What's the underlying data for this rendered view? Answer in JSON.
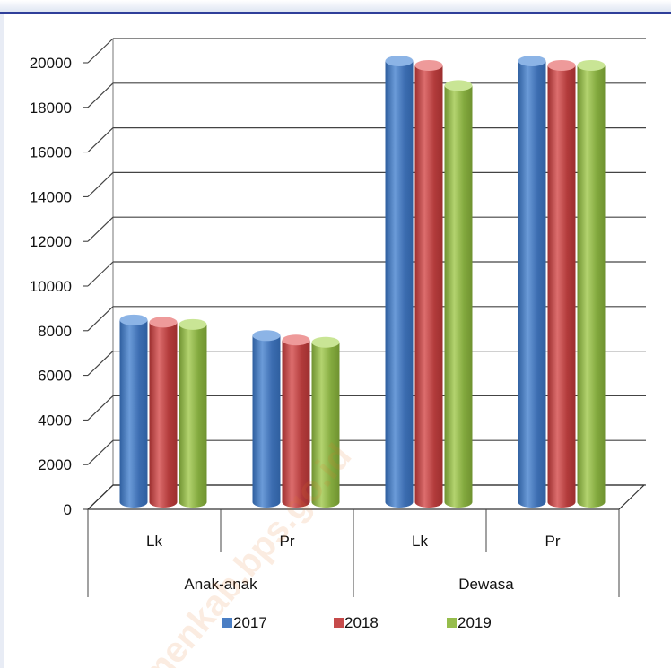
{
  "watermark": "menkab.bps.go.id",
  "colors": {
    "2017": "#4a7ec4",
    "2018": "#c64a4a",
    "2019": "#96bd4c"
  },
  "chart_data": {
    "type": "bar",
    "style": "3d-cylinder",
    "groups": [
      {
        "label": "Anak-anak",
        "categories": [
          "Lk",
          "Pr"
        ]
      },
      {
        "label": "Dewasa",
        "categories": [
          "Lk",
          "Pr"
        ]
      }
    ],
    "categories": [
      "Lk",
      "Pr",
      "Lk",
      "Pr"
    ],
    "series": [
      {
        "name": "2017",
        "values": [
          8400,
          7700,
          20000,
          20000
        ]
      },
      {
        "name": "2018",
        "values": [
          8300,
          7500,
          19800,
          19800
        ]
      },
      {
        "name": "2019",
        "values": [
          8200,
          7400,
          18900,
          19800
        ]
      }
    ],
    "yticks": [
      "0",
      "2000",
      "4000",
      "6000",
      "8000",
      "10000",
      "12000",
      "14000",
      "16000",
      "18000",
      "20000"
    ],
    "ylim": [
      0,
      20000
    ],
    "grid": true,
    "legend": "bottom"
  }
}
